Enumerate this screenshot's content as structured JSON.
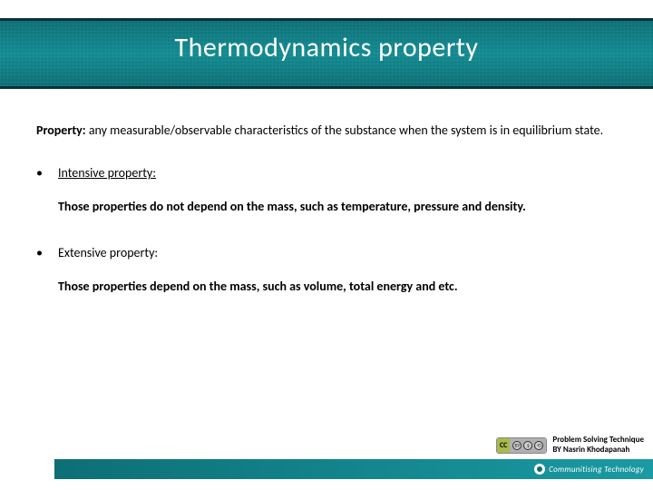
{
  "title": "Thermodynamics property",
  "lead_bold": "Property:",
  "lead_rest": " any measurable/observable characteristics of the substance when the system is in equilibrium state.",
  "bullets": [
    {
      "label": "Intensive property:",
      "desc": "Those properties do not depend on the mass, such as temperature, pressure and density."
    },
    {
      "label": "Extensive property:",
      "desc": "Those properties depend on the mass, such as volume, total energy and etc."
    }
  ],
  "credit_line1": "Problem Solving Technique",
  "credit_line2": "BY Nasrin Khodapanah",
  "cc_label": "CC",
  "cc_sub": "BY NC SA",
  "footer_brand": "Communitising Technology",
  "colors": {
    "band_dark": "#0d6f75",
    "band_mid": "#128a91",
    "band_border": "#063438",
    "text": "#000000",
    "title_text": "#ffffff",
    "background": "#ffffff"
  },
  "fontsize": {
    "title": 30,
    "body": 14,
    "credit": 9
  }
}
